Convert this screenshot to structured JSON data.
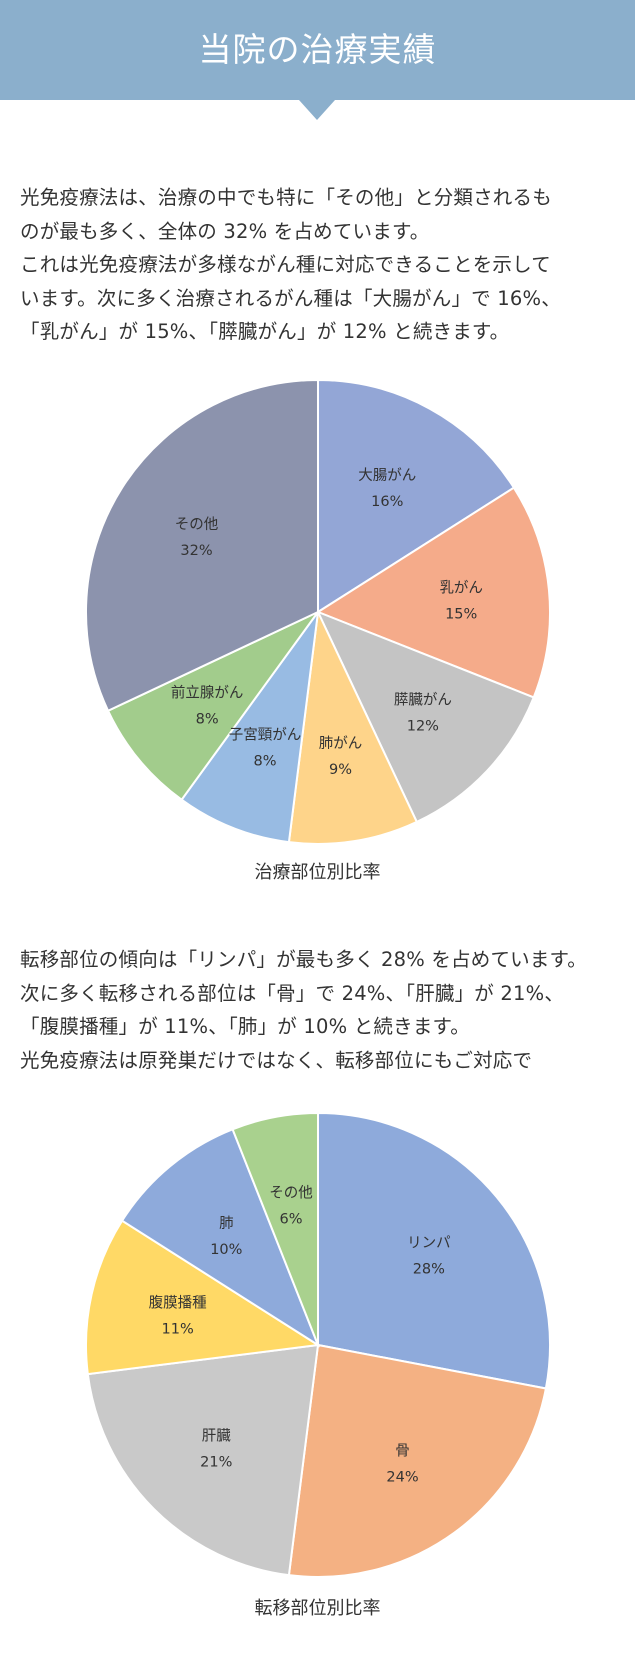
{
  "header": {
    "title": "当院の治療実績",
    "background_color": "#8bafcc"
  },
  "section1": {
    "paragraph_lines": [
      "光免疫療法は、治療の中でも特に「その他」と分類されるも",
      "のが最も多く、全体の 32% を占めています。",
      "これは光免疫療法が多様ながん種に対応できることを示して",
      "います。次に多く治療されるがん種は「大腸がん」で 16%、",
      "「乳がん」が 15%、「膵臓がん」が 12% と続きます。"
    ]
  },
  "section2": {
    "paragraph_lines": [
      "転移部位の傾向は「リンパ」が最も多く 28% を占めています。",
      "次に多く転移される部位は「骨」で 24%、「肝臓」が 21%、",
      "「腹膜播種」が 11%、「肺」が 10% と続きます。",
      "光免疫療法は原発巣だけではなく、転移部位にもご対応で"
    ]
  },
  "chart_data": [
    {
      "type": "pie",
      "title": "治療部位別比率",
      "start_angle": "12 o'clock, clockwise",
      "legend": "none (data labels inside slices)",
      "categories": [
        "大腸がん",
        "乳がん",
        "膵臓がん",
        "肺がん",
        "子宮頸がん",
        "前立腺がん",
        "その他"
      ],
      "values": [
        16,
        15,
        12,
        9,
        8,
        8,
        32
      ],
      "labels": [
        "16%",
        "15%",
        "12%",
        "9%",
        "8%",
        "8%",
        "32%"
      ],
      "colors": [
        "#93a6d6",
        "#f5ab8a",
        "#c4c4c4",
        "#fed48a",
        "#98bbe3",
        "#a2cc8c",
        "#8c93ad"
      ]
    },
    {
      "type": "pie",
      "title": "転移部位別比率",
      "start_angle": "12 o'clock, clockwise",
      "legend": "none (data labels inside slices)",
      "categories": [
        "リンパ",
        "骨",
        "肝臓",
        "腹膜播種",
        "肺",
        "その他"
      ],
      "values": [
        28,
        24,
        21,
        11,
        10,
        6
      ],
      "labels": [
        "28%",
        "24%",
        "21%",
        "11%",
        "10%",
        "6%"
      ],
      "colors": [
        "#8eaadb",
        "#f4b183",
        "#c9c9c9",
        "#ffd966",
        "#8eaadb",
        "#a9d18e"
      ]
    }
  ]
}
